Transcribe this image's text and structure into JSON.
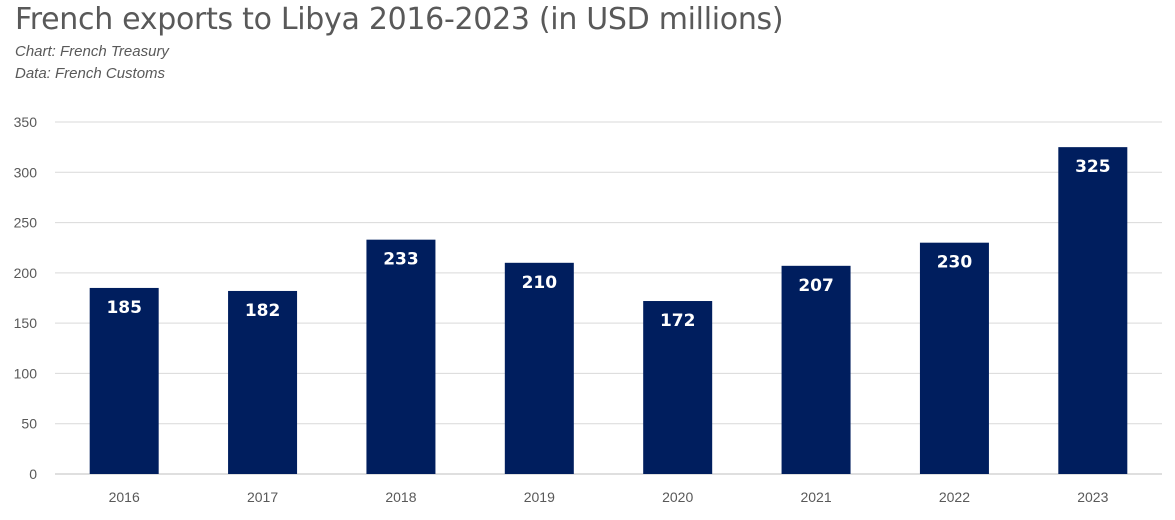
{
  "header": {
    "title": "French exports to Libya 2016-2023 (in USD millions)",
    "source_chart": "Chart: French Treasury",
    "source_data": "Data: French Customs"
  },
  "chart_data": {
    "type": "bar",
    "title": "French exports to Libya 2016-2023 (in USD millions)",
    "categories": [
      "2016",
      "2017",
      "2018",
      "2019",
      "2020",
      "2021",
      "2022",
      "2023"
    ],
    "values": [
      185,
      182,
      233,
      210,
      172,
      207,
      230,
      325
    ],
    "yticks": [
      0,
      50,
      100,
      150,
      200,
      250,
      300,
      350
    ],
    "ylim": [
      0,
      350
    ],
    "xlabel": "",
    "ylabel": "",
    "grid": true,
    "legend": "none",
    "bar_color": "#001E5E",
    "data_labels": true
  }
}
